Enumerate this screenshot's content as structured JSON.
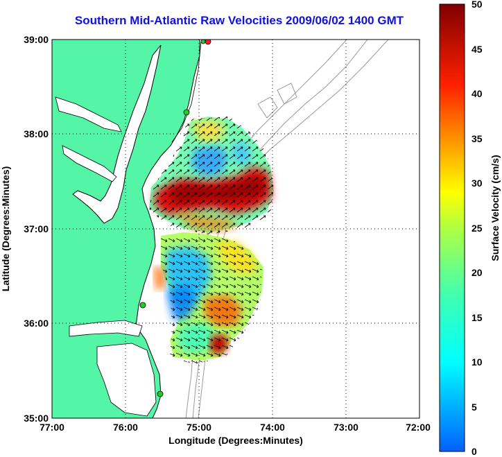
{
  "title": "Southern Mid-Atlantic Raw Velocities 2009/06/02 1400 GMT",
  "map": {
    "xlabel": "Longitude (Degrees:Minutes)",
    "ylabel": "Latitude (Degrees:Minutes)",
    "lon_range": [
      -77,
      -72
    ],
    "lat_range": [
      35,
      39
    ],
    "x_ticks": [
      "77:00",
      "76:00",
      "75:00",
      "74:00",
      "73:00",
      "72:00"
    ],
    "y_ticks": [
      "35:00",
      "36:00",
      "37:00",
      "38:00",
      "39:00"
    ],
    "grid": "dotted",
    "land_color": "#55f5a8",
    "coastline_color": "#000000",
    "bathymetry_color": "#9a9a9a"
  },
  "colorbar": {
    "label": "Surface Velocity (cm/s)",
    "ticks": [
      "0",
      "5",
      "10",
      "15",
      "20",
      "25",
      "30",
      "35",
      "40",
      "45",
      "50"
    ],
    "range": [
      0,
      50
    ],
    "colormap": "jet"
  },
  "stations": {
    "color": "#22cc22",
    "highlight_color": "#ee2222"
  }
}
